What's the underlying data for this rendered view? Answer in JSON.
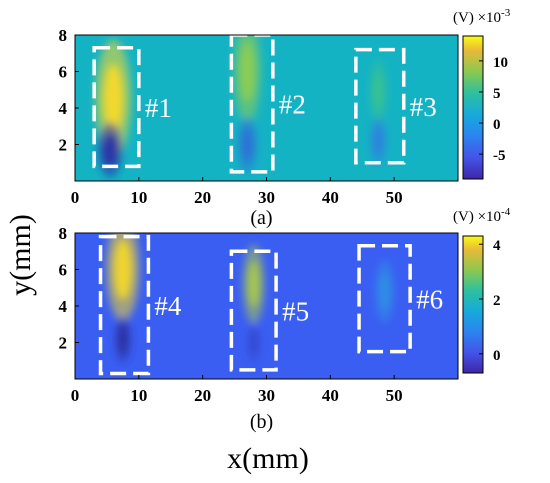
{
  "chart_data": [
    {
      "type": "heatmap",
      "panel_label": "(a)",
      "xlabel": "",
      "ylabel": "",
      "xlim": [
        0,
        60
      ],
      "ylim": [
        0,
        8
      ],
      "xticks": [
        "0",
        "10",
        "20",
        "30",
        "40",
        "50"
      ],
      "yticks": [
        "2",
        "4",
        "6",
        "8"
      ],
      "background_color": "#14b3c4",
      "colorbar": {
        "unit_text": "(V)",
        "scale_text": "×10",
        "scale_exp": "-3",
        "range": [
          -9,
          14
        ],
        "ticks": [
          "10",
          "5",
          "0",
          "-5"
        ],
        "tick_values": [
          10,
          5,
          0,
          -5
        ]
      },
      "boxes": [
        {
          "label": "#1",
          "x": [
            3.0,
            10.0
          ],
          "y": [
            0.8,
            7.3
          ]
        },
        {
          "label": "#2",
          "x": [
            24.5,
            31.0
          ],
          "y": [
            0.5,
            8.0
          ]
        },
        {
          "label": "#3",
          "x": [
            44.0,
            51.5
          ],
          "y": [
            1.0,
            7.2
          ]
        }
      ],
      "blobs": [
        {
          "x": 6,
          "y": 4.5,
          "sx": 1.3,
          "sy": 1.5,
          "color": "#f7d92a",
          "value": 14
        },
        {
          "x": 5.5,
          "y": 1.7,
          "sx": 0.9,
          "sy": 0.7,
          "color": "#2a2ea8",
          "value": -9
        },
        {
          "x": 27,
          "y": 6.0,
          "sx": 1.0,
          "sy": 1.3,
          "color": "#8fcc52",
          "value": 6
        },
        {
          "x": 27,
          "y": 2.0,
          "sx": 0.7,
          "sy": 0.7,
          "color": "#2f6fd9",
          "value": -3
        },
        {
          "x": 47.5,
          "y": 4.9,
          "sx": 0.6,
          "sy": 0.8,
          "color": "#3cc28f",
          "value": 3
        },
        {
          "x": 47.5,
          "y": 2.2,
          "sx": 0.6,
          "sy": 0.6,
          "color": "#2f7fe0",
          "value": -2
        }
      ]
    },
    {
      "type": "heatmap",
      "panel_label": "(b)",
      "xlabel": "x(mm)",
      "ylabel": "y(mm)",
      "xlim": [
        0,
        60
      ],
      "ylim": [
        0,
        8
      ],
      "xticks": [
        "0",
        "10",
        "20",
        "30",
        "40",
        "50"
      ],
      "yticks": [
        "2",
        "4",
        "6",
        "8"
      ],
      "background_color": "#3a5ef2",
      "colorbar": {
        "unit_text": "(V)",
        "scale_text": "×10",
        "scale_exp": "-4",
        "range": [
          -0.7,
          4.3
        ],
        "ticks": [
          "4",
          "2",
          "0"
        ],
        "tick_values": [
          4,
          2,
          0
        ]
      },
      "boxes": [
        {
          "label": "#4",
          "x": [
            4.0,
            11.5
          ],
          "y": [
            0.3,
            7.8
          ]
        },
        {
          "label": "#5",
          "x": [
            24.5,
            31.5
          ],
          "y": [
            0.5,
            7.0
          ]
        },
        {
          "label": "#6",
          "x": [
            44.5,
            52.5
          ],
          "y": [
            1.5,
            7.3
          ]
        }
      ],
      "blobs": [
        {
          "x": 7.5,
          "y": 6.0,
          "sx": 1.2,
          "sy": 1.3,
          "color": "#f2d72c",
          "value": 4.3
        },
        {
          "x": 7.5,
          "y": 2.2,
          "sx": 0.6,
          "sy": 0.6,
          "color": "#2b2fa0",
          "value": -0.7
        },
        {
          "x": 28,
          "y": 5.2,
          "sx": 0.8,
          "sy": 1.0,
          "color": "#a9c94a",
          "value": 2.8
        },
        {
          "x": 28,
          "y": 2.0,
          "sx": 0.5,
          "sy": 0.5,
          "color": "#3348d0",
          "value": -0.3
        },
        {
          "x": 48.5,
          "y": 4.8,
          "sx": 0.7,
          "sy": 0.8,
          "color": "#2d8fe6",
          "value": 1.0
        }
      ]
    }
  ]
}
